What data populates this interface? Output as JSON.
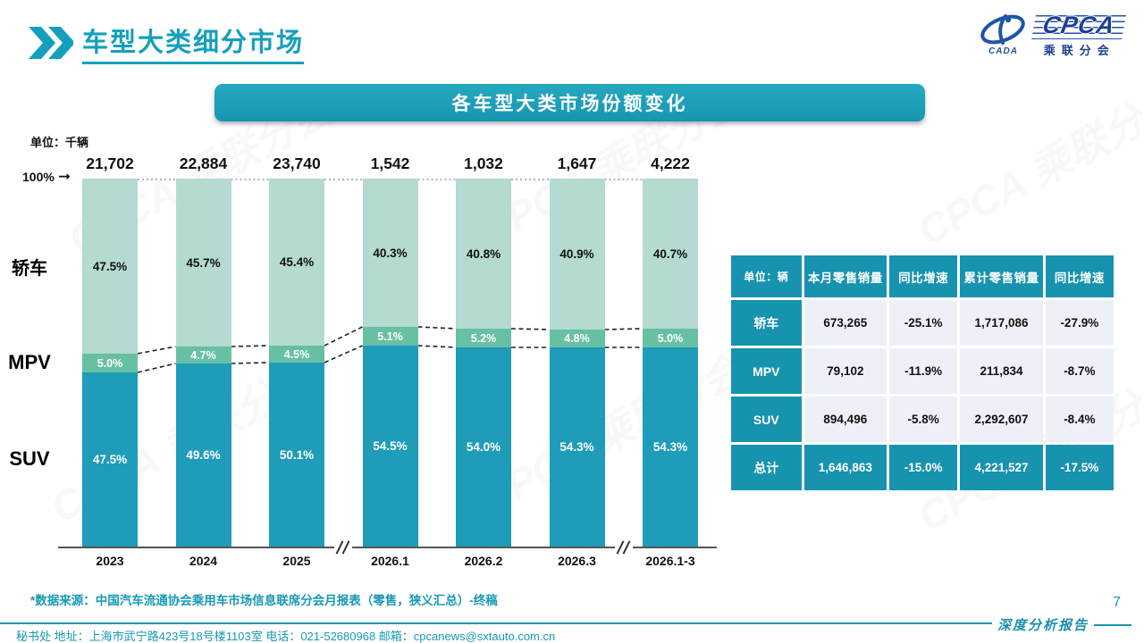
{
  "page": {
    "title": "车型大类细分市场",
    "page_number": "7",
    "report_label": "深度分析报告",
    "source_note": "*数据来源：中国汽车流通协会乘用车市场信息联席分会月报表（零售，狭义汇总）-终稿",
    "footer": "秘书处  地址：上海市武宁路423号18号楼1103室 电话：021-52680968  邮箱：cpcanews@sxtauto.com.cn",
    "watermark": "CPCA 乘联分会"
  },
  "logo": {
    "cpca": "CPCA",
    "cada": "CADA",
    "subtitle": "乘联分会"
  },
  "chart_data": {
    "type": "bar",
    "stacked": true,
    "title": "各车型大类市场份额变化",
    "unit_label": "单位：千辆",
    "axis_marker": "100%",
    "categories": [
      "2023",
      "2024",
      "2025",
      "2026.1",
      "2026.2",
      "2026.3",
      "2026.1-3"
    ],
    "totals": [
      "21,702",
      "22,884",
      "23,740",
      "1,542",
      "1,032",
      "1,647",
      "4,222"
    ],
    "series": [
      {
        "name": "轿车",
        "color": "#b4dad2",
        "values": [
          47.5,
          45.7,
          45.4,
          40.3,
          40.8,
          40.9,
          40.7
        ]
      },
      {
        "name": "MPV",
        "color": "#68c0a4",
        "values": [
          5.0,
          4.7,
          4.5,
          5.1,
          5.2,
          4.8,
          5.0
        ]
      },
      {
        "name": "SUV",
        "color": "#1e9cba",
        "values": [
          47.5,
          49.6,
          50.1,
          54.5,
          54.0,
          54.3,
          54.3
        ]
      }
    ],
    "axis_breaks_after": [
      2,
      5
    ],
    "ylim": [
      0,
      100
    ],
    "legend_position": "left",
    "grid": false
  },
  "table": {
    "unit_header": "单位：辆",
    "columns": [
      "本月零售销量",
      "同比增速",
      "累计零售销量",
      "同比增速"
    ],
    "rows": [
      {
        "label": "轿车",
        "values": [
          "673,265",
          "-25.1%",
          "1,717,086",
          "-27.9%"
        ],
        "highlight": false
      },
      {
        "label": "MPV",
        "values": [
          "79,102",
          "-11.9%",
          "211,834",
          "-8.7%"
        ],
        "highlight": false
      },
      {
        "label": "SUV",
        "values": [
          "894,496",
          "-5.8%",
          "2,292,607",
          "-8.4%"
        ],
        "highlight": false
      },
      {
        "label": "总计",
        "values": [
          "1,646,863",
          "-15.0%",
          "4,221,527",
          "-17.5%"
        ],
        "highlight": true
      }
    ]
  },
  "colors": {
    "accent_teal": "#1799b4",
    "table_teal": "#1793af",
    "sedan": "#b4dad2",
    "mpv": "#68c0a4",
    "suv": "#1e9cba",
    "logo_blue": "#1d3f94"
  }
}
